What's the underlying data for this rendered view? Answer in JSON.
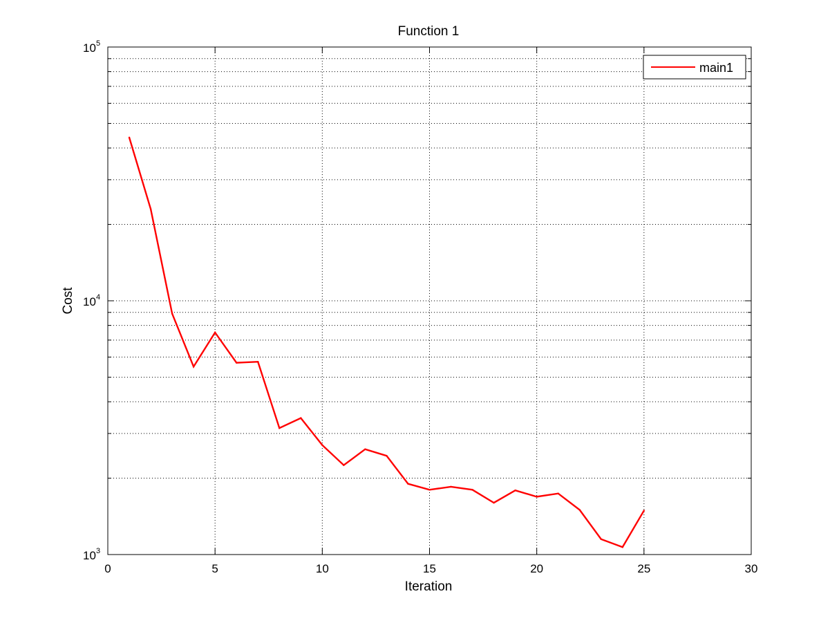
{
  "chart_data": {
    "type": "line",
    "title": "Function 1",
    "xlabel": "Iteration",
    "ylabel": "Cost",
    "xlim": [
      0,
      30
    ],
    "ylim": [
      1000,
      100000
    ],
    "yscale": "log",
    "grid": true,
    "legend_position": "top-right",
    "x_ticks": [
      0,
      5,
      10,
      15,
      20,
      25,
      30
    ],
    "x_tick_labels": [
      "0",
      "5",
      "10",
      "15",
      "20",
      "25",
      "30"
    ],
    "y_ticks": [
      {
        "value": 1000,
        "base": "10",
        "exp": "3"
      },
      {
        "value": 10000,
        "base": "10",
        "exp": "4"
      },
      {
        "value": 100000,
        "base": "10",
        "exp": "5"
      }
    ],
    "series": [
      {
        "name": "main1",
        "color": "#ff0000",
        "x": [
          1,
          2,
          3,
          4,
          5,
          6,
          7,
          8,
          9,
          10,
          11,
          12,
          13,
          14,
          15,
          16,
          17,
          18,
          19,
          20,
          21,
          22,
          23,
          24,
          25
        ],
        "y": [
          44000,
          23000,
          8900,
          5500,
          7500,
          5700,
          5750,
          3150,
          3450,
          2700,
          2250,
          2600,
          2450,
          1900,
          1800,
          1850,
          1800,
          1600,
          1790,
          1690,
          1740,
          1500,
          1150,
          1070,
          1490
        ]
      }
    ]
  }
}
